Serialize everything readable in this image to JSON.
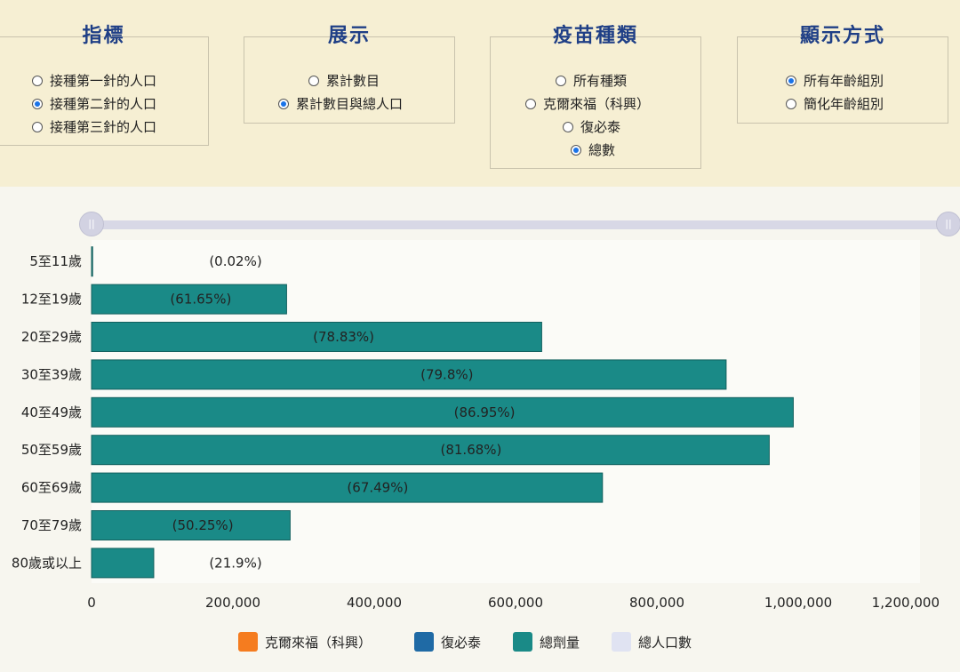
{
  "panels": [
    {
      "title": "指標",
      "options": [
        {
          "label": "接種第一針的人口",
          "selected": false
        },
        {
          "label": "接種第二針的人口",
          "selected": true
        },
        {
          "label": "接種第三針的人口",
          "selected": false
        }
      ]
    },
    {
      "title": "展示",
      "options": [
        {
          "label": "累計數目",
          "selected": false
        },
        {
          "label": "累計數目與總人口",
          "selected": true
        }
      ]
    },
    {
      "title": "疫苗種類",
      "options": [
        {
          "label": "所有種類",
          "selected": false
        },
        {
          "label": "克爾來福（科興）",
          "selected": false
        },
        {
          "label": "復必泰",
          "selected": false
        },
        {
          "label": "總數",
          "selected": true
        }
      ]
    },
    {
      "title": "顯示方式",
      "options": [
        {
          "label": "所有年齡組別",
          "selected": true
        },
        {
          "label": "簡化年齡組別",
          "selected": false
        }
      ]
    }
  ],
  "chart_data": {
    "type": "bar",
    "orientation": "horizontal",
    "categories": [
      "5至11歲",
      "12至19歲",
      "20至29歲",
      "30至39歲",
      "40至49歲",
      "50至59歲",
      "60至69歲",
      "70至79歲",
      "80歲或以上"
    ],
    "series": [
      {
        "name": "總劑量",
        "values": [
          300,
          276000,
          637000,
          898000,
          993000,
          959000,
          723000,
          281000,
          88000
        ]
      }
    ],
    "percent_labels": [
      "(0.02%)",
      "(61.65%)",
      "(78.83%)",
      "(79.8%)",
      "(86.95%)",
      "(81.68%)",
      "(67.49%)",
      "(50.25%)",
      "(21.9%)"
    ],
    "xlim": [
      0,
      1200000
    ],
    "x_ticks": [
      "0",
      "200,000",
      "400,000",
      "600,000",
      "800,000",
      "1,000,000",
      "1,200,000"
    ],
    "grid": false,
    "legend_position": "bottom",
    "legend": [
      {
        "label": "克爾來福（科興）",
        "color": "#f57c1f"
      },
      {
        "label": "復必泰",
        "color": "#1f6aa5"
      },
      {
        "label": "總劑量",
        "color": "#1a8a87"
      },
      {
        "label": "總人口數",
        "color": "#e0e3f2"
      }
    ],
    "colors": {
      "bar": "#1a8a87",
      "bar_stroke": "#12605e"
    }
  }
}
